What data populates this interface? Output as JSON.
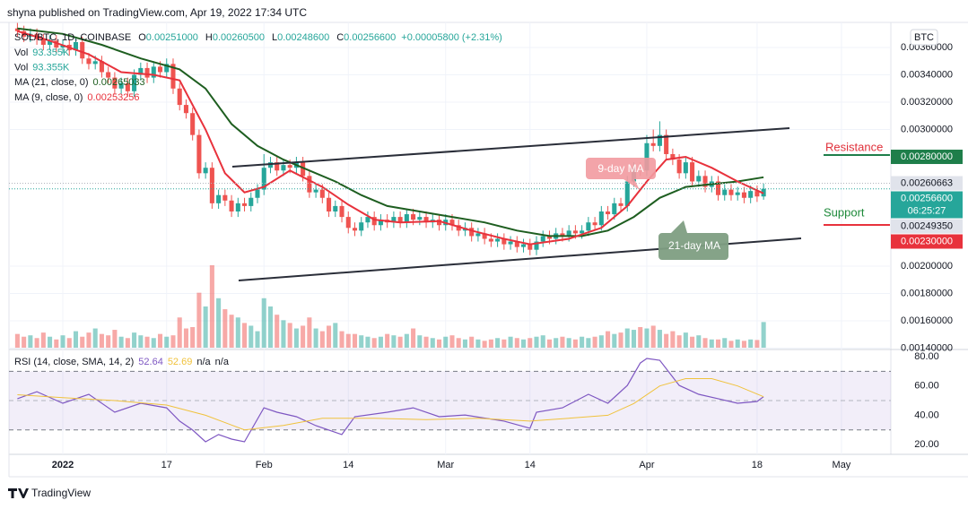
{
  "header": "shyna published on TradingView.com, Apr 19, 2022 17:34 UTC",
  "currency_button": "BTC",
  "legend": {
    "symbol": "SOL/BTC, 1D, COINBASE",
    "ohlc": [
      [
        "O",
        "0.00251000"
      ],
      [
        "H",
        "0.00260500"
      ],
      [
        "L",
        "0.00248600"
      ],
      [
        "C",
        "0.00256600"
      ]
    ],
    "change": "+0.00005800 (+2.31%)",
    "vol": [
      [
        "Vol",
        "93.355K"
      ],
      [
        "Vol",
        "93.355K"
      ]
    ],
    "ma": [
      [
        "MA (21, close, 0)",
        "0.00265033"
      ],
      [
        "MA (9, close, 0)",
        "0.00253256"
      ]
    ],
    "rsi": [
      "RSI (14, close, SMA, 14, 2)",
      "52.64",
      "52.69",
      "n/a",
      "n/a"
    ]
  },
  "annotations": {
    "ma9": "9-day MA",
    "ma21": "21-day MA",
    "resistance": "Resistance",
    "support": "Support"
  },
  "footer": "TradingView",
  "chart_data": [
    {
      "type": "candlestick",
      "up_color": "#26a69a",
      "down_color": "#ef5350",
      "xlim": [
        -8.3,
        127.2
      ],
      "xticks": [
        {
          "value": 0,
          "label": "2022"
        },
        {
          "value": 16,
          "label": "17"
        },
        {
          "value": 31,
          "label": "Feb"
        },
        {
          "value": 44,
          "label": "14"
        },
        {
          "value": 59,
          "label": "Mar"
        },
        {
          "value": 72,
          "label": "14"
        },
        {
          "value": 90,
          "label": "Apr"
        },
        {
          "value": 107,
          "label": "18"
        },
        {
          "value": 120,
          "label": "May"
        }
      ],
      "ylim": [
        0.001403,
        0.003784
      ],
      "yticks": [
        {
          "value": 0.0036,
          "label": "0.00360000"
        },
        {
          "value": 0.0034,
          "label": "0.00340000"
        },
        {
          "value": 0.0032,
          "label": "0.00320000"
        },
        {
          "value": 0.003,
          "label": "0.00300000"
        },
        {
          "value": 0.002,
          "label": "0.00200000"
        },
        {
          "value": 0.0018,
          "label": "0.00180000"
        },
        {
          "value": 0.0016,
          "label": "0.00160000"
        },
        {
          "value": 0.0014,
          "label": "0.00140000"
        }
      ],
      "grid": true,
      "x": [
        -7,
        -6,
        -5,
        -4,
        -3,
        -2,
        -1,
        0,
        1,
        2,
        3,
        4,
        5,
        6,
        7,
        8,
        9,
        10,
        11,
        12,
        13,
        14,
        15,
        16,
        17,
        18,
        19,
        20,
        21,
        22,
        23,
        24,
        25,
        26,
        27,
        28,
        29,
        30,
        31,
        32,
        33,
        34,
        35,
        36,
        37,
        38,
        39,
        40,
        41,
        42,
        43,
        44,
        45,
        46,
        47,
        48,
        49,
        50,
        51,
        52,
        53,
        54,
        55,
        56,
        57,
        58,
        59,
        60,
        61,
        62,
        63,
        64,
        65,
        66,
        67,
        68,
        69,
        70,
        71,
        72,
        73,
        74,
        75,
        76,
        77,
        78,
        79,
        80,
        81,
        82,
        83,
        84,
        85,
        86,
        87,
        88,
        89,
        90,
        91,
        92,
        93,
        94,
        95,
        96,
        97,
        98,
        99,
        100,
        101,
        102,
        103,
        104,
        105,
        106,
        107,
        108
      ],
      "open": [
        0.00374,
        0.00372,
        0.00368,
        0.0037,
        0.00366,
        0.00362,
        0.00365,
        0.0036,
        0.00362,
        0.00358,
        0.00364,
        0.00352,
        0.00348,
        0.0035,
        0.00342,
        0.00338,
        0.0033,
        0.00334,
        0.00328,
        0.0034,
        0.00345,
        0.00338,
        0.00346,
        0.00342,
        0.00348,
        0.0033,
        0.00318,
        0.00312,
        0.00296,
        0.00268,
        0.00272,
        0.00246,
        0.00252,
        0.00248,
        0.0024,
        0.00246,
        0.00244,
        0.0025,
        0.00256,
        0.00272,
        0.00276,
        0.0027,
        0.00274,
        0.00272,
        0.00276,
        0.00266,
        0.00254,
        0.00256,
        0.0025,
        0.0024,
        0.00244,
        0.00236,
        0.00228,
        0.00226,
        0.00232,
        0.00236,
        0.0023,
        0.00234,
        0.00232,
        0.00236,
        0.00232,
        0.00238,
        0.00234,
        0.00236,
        0.00232,
        0.00234,
        0.0023,
        0.00234,
        0.0023,
        0.00226,
        0.00228,
        0.00222,
        0.00224,
        0.0022,
        0.00218,
        0.0022,
        0.00216,
        0.00218,
        0.00214,
        0.00216,
        0.00212,
        0.00218,
        0.00222,
        0.0022,
        0.00224,
        0.00222,
        0.00226,
        0.00224,
        0.00226,
        0.00232,
        0.0023,
        0.0024,
        0.00238,
        0.00246,
        0.00244,
        0.00262,
        0.00272,
        0.0027,
        0.0029,
        0.00288,
        0.00296,
        0.00282,
        0.00278,
        0.00268,
        0.00276,
        0.00262,
        0.00266,
        0.00258,
        0.00262,
        0.00252,
        0.00256,
        0.00252,
        0.00254,
        0.0025,
        0.00255,
        0.00251
      ],
      "high": [
        0.00378,
        0.00376,
        0.00374,
        0.00374,
        0.0037,
        0.00369,
        0.00369,
        0.00366,
        0.00366,
        0.00368,
        0.00368,
        0.00356,
        0.00354,
        0.00354,
        0.00346,
        0.00342,
        0.00338,
        0.00338,
        0.00344,
        0.00349,
        0.00349,
        0.0035,
        0.0035,
        0.00352,
        0.00352,
        0.00334,
        0.00322,
        0.00316,
        0.003,
        0.00276,
        0.00276,
        0.00256,
        0.00256,
        0.00252,
        0.0025,
        0.0025,
        0.00254,
        0.0026,
        0.00282,
        0.0028,
        0.0028,
        0.00278,
        0.00278,
        0.0028,
        0.0028,
        0.0027,
        0.0026,
        0.0026,
        0.00254,
        0.00248,
        0.00248,
        0.0024,
        0.00232,
        0.00236,
        0.0024,
        0.0024,
        0.00238,
        0.00238,
        0.0024,
        0.0024,
        0.00242,
        0.00242,
        0.0024,
        0.0024,
        0.00238,
        0.00238,
        0.00238,
        0.00238,
        0.00234,
        0.00232,
        0.00232,
        0.00228,
        0.00228,
        0.00224,
        0.00224,
        0.00224,
        0.00222,
        0.00222,
        0.0022,
        0.0022,
        0.00222,
        0.00226,
        0.00226,
        0.00228,
        0.00228,
        0.0023,
        0.0023,
        0.0023,
        0.00236,
        0.00236,
        0.00244,
        0.00244,
        0.0025,
        0.0025,
        0.00266,
        0.00276,
        0.00276,
        0.00296,
        0.003,
        0.00306,
        0.003,
        0.00286,
        0.00282,
        0.0028,
        0.0028,
        0.0027,
        0.0027,
        0.00266,
        0.00266,
        0.0026,
        0.0026,
        0.00258,
        0.00258,
        0.00259,
        0.00259,
        0.002605
      ],
      "low": [
        0.00368,
        0.00364,
        0.00364,
        0.00362,
        0.00358,
        0.00358,
        0.00356,
        0.00356,
        0.00354,
        0.00354,
        0.00348,
        0.00344,
        0.00344,
        0.00338,
        0.00334,
        0.00326,
        0.00326,
        0.00324,
        0.00324,
        0.00336,
        0.00334,
        0.00334,
        0.00338,
        0.00338,
        0.00326,
        0.00314,
        0.00308,
        0.00292,
        0.00264,
        0.00264,
        0.00242,
        0.00242,
        0.00244,
        0.00236,
        0.00236,
        0.0024,
        0.0024,
        0.00246,
        0.00252,
        0.00268,
        0.00266,
        0.00266,
        0.00268,
        0.00268,
        0.00262,
        0.0025,
        0.0025,
        0.00246,
        0.00236,
        0.00236,
        0.00232,
        0.00224,
        0.00222,
        0.00222,
        0.00228,
        0.00226,
        0.00226,
        0.00228,
        0.00228,
        0.00228,
        0.00228,
        0.0023,
        0.0023,
        0.00228,
        0.00228,
        0.00226,
        0.00226,
        0.00226,
        0.00222,
        0.00222,
        0.00218,
        0.00218,
        0.00216,
        0.00214,
        0.00214,
        0.00212,
        0.00212,
        0.0021,
        0.0021,
        0.00208,
        0.00208,
        0.00214,
        0.00216,
        0.00216,
        0.00218,
        0.00218,
        0.0022,
        0.0022,
        0.00222,
        0.00226,
        0.00226,
        0.00234,
        0.00234,
        0.0024,
        0.0024,
        0.00258,
        0.00266,
        0.00266,
        0.00284,
        0.00284,
        0.00278,
        0.00274,
        0.00264,
        0.00264,
        0.00258,
        0.00258,
        0.00254,
        0.00254,
        0.00248,
        0.00248,
        0.00248,
        0.00248,
        0.00246,
        0.00246,
        0.00247,
        0.002486
      ],
      "close": [
        0.00372,
        0.00368,
        0.0037,
        0.00366,
        0.00362,
        0.00365,
        0.0036,
        0.00362,
        0.00358,
        0.00364,
        0.00352,
        0.00348,
        0.0035,
        0.00342,
        0.00338,
        0.0033,
        0.00334,
        0.00328,
        0.0034,
        0.00345,
        0.00338,
        0.00346,
        0.00342,
        0.00348,
        0.0033,
        0.00318,
        0.00312,
        0.00296,
        0.00268,
        0.00272,
        0.00246,
        0.00252,
        0.00248,
        0.0024,
        0.00246,
        0.00244,
        0.0025,
        0.00256,
        0.00272,
        0.00276,
        0.0027,
        0.00274,
        0.00272,
        0.00276,
        0.00266,
        0.00254,
        0.00256,
        0.0025,
        0.0024,
        0.00244,
        0.00236,
        0.00228,
        0.00226,
        0.00232,
        0.00236,
        0.0023,
        0.00234,
        0.00232,
        0.00236,
        0.00232,
        0.00238,
        0.00234,
        0.00236,
        0.00232,
        0.00234,
        0.0023,
        0.00234,
        0.0023,
        0.00226,
        0.00228,
        0.00222,
        0.00224,
        0.0022,
        0.00218,
        0.0022,
        0.00216,
        0.00218,
        0.00214,
        0.00216,
        0.00212,
        0.00218,
        0.00222,
        0.0022,
        0.00224,
        0.00222,
        0.00226,
        0.00224,
        0.00226,
        0.00232,
        0.0023,
        0.0024,
        0.00238,
        0.00246,
        0.00244,
        0.00262,
        0.00272,
        0.0027,
        0.0029,
        0.00288,
        0.00296,
        0.00282,
        0.00278,
        0.00268,
        0.00276,
        0.00262,
        0.00266,
        0.00258,
        0.00262,
        0.00252,
        0.00256,
        0.00252,
        0.00254,
        0.0025,
        0.00255,
        0.00251,
        0.002566
      ],
      "volume": [
        50000,
        40000,
        45000,
        35000,
        55000,
        40000,
        30000,
        45000,
        35000,
        60000,
        40000,
        55000,
        70000,
        50000,
        45000,
        65000,
        40000,
        35000,
        55000,
        45000,
        40000,
        35000,
        50000,
        40000,
        45000,
        110000,
        70000,
        75000,
        200000,
        150000,
        300000,
        180000,
        140000,
        120000,
        110000,
        90000,
        80000,
        60000,
        180000,
        150000,
        120000,
        100000,
        90000,
        70000,
        80000,
        110000,
        70000,
        60000,
        80000,
        90000,
        60000,
        50000,
        50000,
        45000,
        40000,
        35000,
        40000,
        50000,
        45000,
        40000,
        50000,
        70000,
        45000,
        40000,
        35000,
        30000,
        40000,
        45000,
        35000,
        30000,
        40000,
        30000,
        25000,
        30000,
        35000,
        30000,
        40000,
        35000,
        30000,
        35000,
        40000,
        45000,
        30000,
        35000,
        40000,
        35000,
        30000,
        40000,
        35000,
        40000,
        45000,
        60000,
        50000,
        55000,
        70000,
        65000,
        75000,
        70000,
        80000,
        65000,
        50000,
        60000,
        45000,
        55000,
        40000,
        45000,
        35000,
        30000,
        30000,
        35000,
        25000,
        30000,
        25000,
        30000,
        28000,
        93355
      ],
      "series": [
        {
          "name": "MA (21, close, 0)",
          "color": "#1e5e20",
          "x": [
            -7,
            0,
            6,
            12,
            18,
            22,
            26,
            30,
            34,
            38,
            42,
            46,
            50,
            55,
            60,
            65,
            70,
            75,
            80,
            84,
            88,
            92,
            96,
            100,
            104,
            108
          ],
          "values": [
            0.00374,
            0.0037,
            0.00362,
            0.00352,
            0.00344,
            0.0033,
            0.00304,
            0.00288,
            0.00278,
            0.0027,
            0.00262,
            0.00252,
            0.00244,
            0.0024,
            0.00236,
            0.00232,
            0.00226,
            0.00222,
            0.00222,
            0.00226,
            0.00236,
            0.0025,
            0.00258,
            0.0026,
            0.00262,
            0.00265033
          ]
        },
        {
          "name": "MA (9, close, 0)",
          "color": "#e8323c",
          "x": [
            -7,
            -2,
            4,
            9,
            14,
            18,
            22,
            25,
            28,
            31,
            35,
            40,
            44,
            48,
            52,
            58,
            63,
            68,
            72,
            78,
            83,
            87,
            90,
            93,
            96,
            100,
            104,
            108
          ],
          "values": [
            0.00372,
            0.00365,
            0.00355,
            0.00342,
            0.0034,
            0.00336,
            0.003,
            0.00268,
            0.00254,
            0.00258,
            0.0027,
            0.00258,
            0.00245,
            0.00234,
            0.00232,
            0.00233,
            0.00226,
            0.0022,
            0.00216,
            0.0022,
            0.00228,
            0.00244,
            0.00262,
            0.00278,
            0.0028,
            0.00272,
            0.00262,
            0.00253256
          ]
        }
      ],
      "price_labels": [
        {
          "value": 0.0028,
          "label": "0.00280000",
          "color": "#1e7e4a"
        },
        {
          "value": 0.00260663,
          "label": "0.00260663",
          "color": "#e0e3eb"
        },
        {
          "value": 0.002566,
          "label": "0.00256600",
          "color": "#26a69a",
          "countdown": "06:25:27"
        },
        {
          "value": 0.0024935,
          "label": "0.00249350",
          "color": "#e0e3eb"
        },
        {
          "value": 0.0023,
          "label": "0.00230000",
          "color": "#e8323c"
        }
      ]
    },
    {
      "type": "line",
      "xlim": [
        -8.3,
        127.2
      ],
      "ylim": [
        13.3,
        83.7
      ],
      "yticks": [
        {
          "value": 80,
          "label": "80.00"
        },
        {
          "value": 60,
          "label": "60.00"
        },
        {
          "value": 40,
          "label": "40.00"
        },
        {
          "value": 20,
          "label": "20.00"
        }
      ],
      "band": [
        30,
        70
      ],
      "series": [
        {
          "name": "RSI",
          "color": "#7e57c2",
          "x": [
            -7,
            -4,
            0,
            4,
            8,
            12,
            16,
            18,
            20,
            22,
            24,
            26,
            28,
            31,
            33,
            36,
            39,
            41,
            43,
            45,
            50,
            54,
            58,
            62,
            68,
            72,
            73,
            77,
            81,
            84,
            87,
            89,
            90,
            92,
            95,
            98,
            101,
            104,
            107,
            108
          ],
          "values": [
            51.3,
            56.1,
            48.2,
            54.3,
            42.1,
            48.2,
            45.1,
            36,
            29.9,
            21.9,
            26.8,
            23.7,
            21.9,
            45.1,
            42.1,
            39,
            32.9,
            29.9,
            26.8,
            39,
            42.1,
            45.1,
            39,
            40.2,
            36,
            31.1,
            42.1,
            45.1,
            54.3,
            48.2,
            60.4,
            75.7,
            78.8,
            77.6,
            60.4,
            54.3,
            51.3,
            48.2,
            49.4,
            52.64
          ]
        },
        {
          "name": "RSI SMA",
          "color": "#f0c23c",
          "x": [
            -7,
            0,
            8,
            16,
            22,
            28,
            34,
            40,
            48,
            56,
            64,
            72,
            78,
            84,
            88,
            92,
            96,
            100,
            104,
            108
          ],
          "values": [
            54,
            52,
            50,
            47,
            40,
            30,
            33,
            38,
            38,
            37,
            38,
            36,
            38,
            40,
            48,
            60,
            65,
            65,
            60,
            52.69
          ]
        }
      ]
    }
  ]
}
